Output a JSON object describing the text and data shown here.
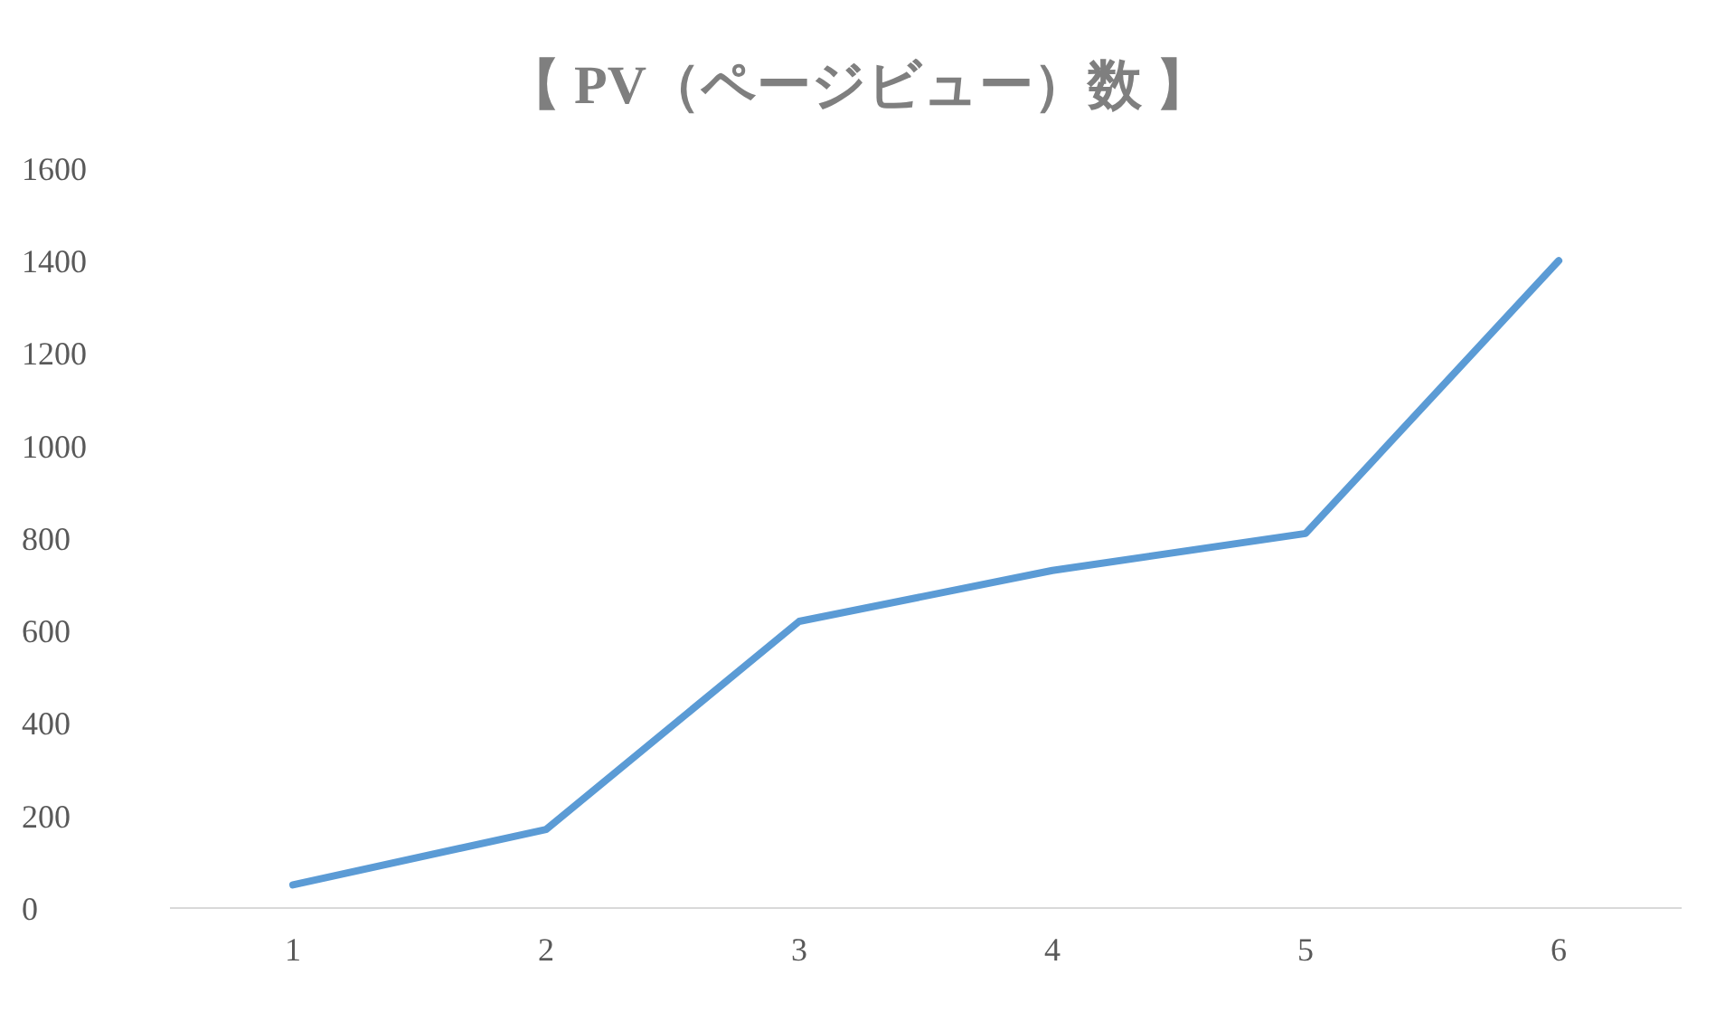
{
  "chart_data": {
    "type": "line",
    "title": "【 PV（ページビュー）数 】",
    "categories": [
      "1",
      "2",
      "3",
      "4",
      "5",
      "6"
    ],
    "series": [
      {
        "color": "#5b9bd5",
        "values": [
          50,
          170,
          620,
          730,
          810,
          1400
        ]
      }
    ],
    "ylim": [
      0,
      1600
    ],
    "yticks": [
      0,
      200,
      400,
      600,
      800,
      1000,
      1200,
      1400,
      1600
    ],
    "grid": false,
    "legend": false,
    "marker": "none",
    "line_style": "solid"
  }
}
